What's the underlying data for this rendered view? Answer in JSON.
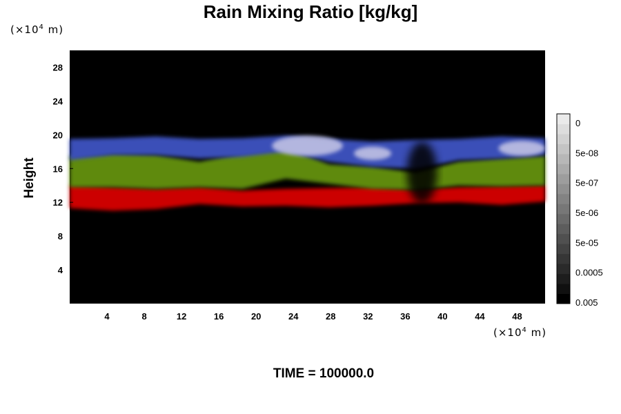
{
  "chart_data": {
    "type": "heatmap",
    "title": "Rain Mixing Ratio [kg/kg]",
    "xlabel": "",
    "ylabel": "Height",
    "x_unit": {
      "prefix": "(×10",
      "exp": "4",
      "suffix": " m)"
    },
    "y_unit": {
      "prefix": "(×10",
      "exp": "4",
      "suffix": " m)"
    },
    "x_ticks": [
      4,
      8,
      12,
      16,
      20,
      24,
      28,
      32,
      36,
      40,
      44,
      48
    ],
    "y_ticks": [
      4,
      8,
      12,
      16,
      20,
      24,
      28
    ],
    "xlim": [
      0,
      51
    ],
    "ylim": [
      0,
      30
    ],
    "footer": "TIME = 100000.0",
    "colorbar": {
      "labels": [
        "0.005",
        "0.0005",
        "5e-05",
        "5e-06",
        "5e-07",
        "5e-08",
        "0"
      ],
      "colors": [
        "#000000",
        "#101010",
        "#1d1d1d",
        "#2a2a2a",
        "#363636",
        "#434343",
        "#505050",
        "#5d5d5d",
        "#6a6a6a",
        "#777777",
        "#838383",
        "#909090",
        "#9d9d9d",
        "#aaaaaa",
        "#b7b7b7",
        "#c4c4c4",
        "#d1d1d1",
        "#dddddd",
        "#eaeaea"
      ]
    },
    "layers": [
      {
        "name": "red",
        "color": "#cc0000",
        "bottom": [
          11.3,
          11.0,
          11.2,
          11.8,
          11.5,
          11.6,
          11.4,
          11.6,
          11.9,
          12.0,
          11.7,
          12.1
        ],
        "top": [
          14.0,
          13.8,
          13.6,
          13.8,
          13.4,
          13.6,
          13.7,
          13.8,
          13.5,
          13.8,
          13.9,
          14.0
        ]
      },
      {
        "name": "green",
        "color": "#5e8a10",
        "bottom": [
          13.8,
          13.8,
          13.6,
          13.8,
          13.6,
          14.8,
          14.2,
          13.6,
          13.5,
          14.0,
          13.9,
          14.0
        ],
        "top": [
          17.5,
          17.8,
          17.6,
          16.8,
          17.8,
          18.5,
          16.5,
          16.2,
          15.5,
          16.8,
          17.2,
          17.5
        ]
      },
      {
        "name": "blue",
        "color": "#3a4fb8",
        "bottom": [
          17.0,
          17.6,
          17.6,
          17.2,
          17.4,
          18.0,
          16.8,
          16.2,
          16.0,
          17.0,
          17.2,
          17.6
        ],
        "top": [
          19.5,
          19.6,
          19.8,
          19.5,
          19.6,
          19.9,
          19.5,
          19.2,
          19.4,
          19.5,
          19.8,
          19.6
        ]
      }
    ],
    "highlights": [
      {
        "x": 25.5,
        "y": 18.7,
        "rx": 3.8,
        "ry": 1.2
      },
      {
        "x": 32.5,
        "y": 17.8,
        "rx": 2.0,
        "ry": 0.8
      },
      {
        "x": 48.5,
        "y": 18.4,
        "rx": 2.5,
        "ry": 0.9
      }
    ]
  }
}
